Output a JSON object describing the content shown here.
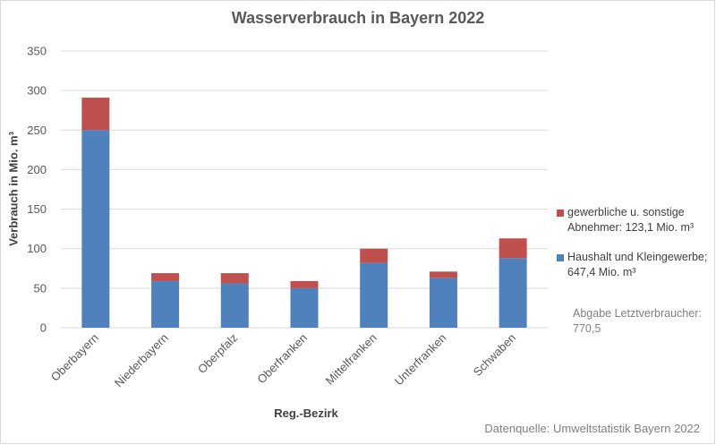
{
  "chart_data": {
    "type": "bar",
    "stacked": true,
    "title": "Wasserverbrauch in Bayern 2022",
    "xlabel": "Reg.-Bezirk",
    "ylabel": "Verbrauch in Mio. m³",
    "ylim": [
      0,
      350
    ],
    "yticks": [
      0,
      50,
      100,
      150,
      200,
      250,
      300,
      350
    ],
    "grid": true,
    "legend_position": "right",
    "categories": [
      "Oberbayern",
      "Niederbayern",
      "Oberpfalz",
      "Oberfranken",
      "Mittelfranken",
      "Unterfranken",
      "Schwaben"
    ],
    "series": [
      {
        "name": "Haushalt und Kleingewerbe; 647,4 Mio. m³",
        "color": "#4f81bd",
        "values": [
          250,
          59,
          56,
          50,
          82,
          63,
          88
        ]
      },
      {
        "name": "gewerbliche u. sonstige Abnehmer: 123,1 Mio. m³",
        "color": "#c0504d",
        "values": [
          41,
          10,
          13,
          9,
          18,
          8,
          25
        ]
      }
    ],
    "legend": [
      {
        "label": "gewerbliche u. sonstige Abnehmer: 123,1 Mio. m³",
        "color": "#c0504d"
      },
      {
        "label": "Haushalt und Kleingewerbe; 647,4 Mio. m³",
        "color": "#4f81bd"
      }
    ],
    "annotation": "Abgabe Letztverbraucher: 770,5",
    "source": "Datenquelle: Umweltstatistik Bayern 2022"
  }
}
